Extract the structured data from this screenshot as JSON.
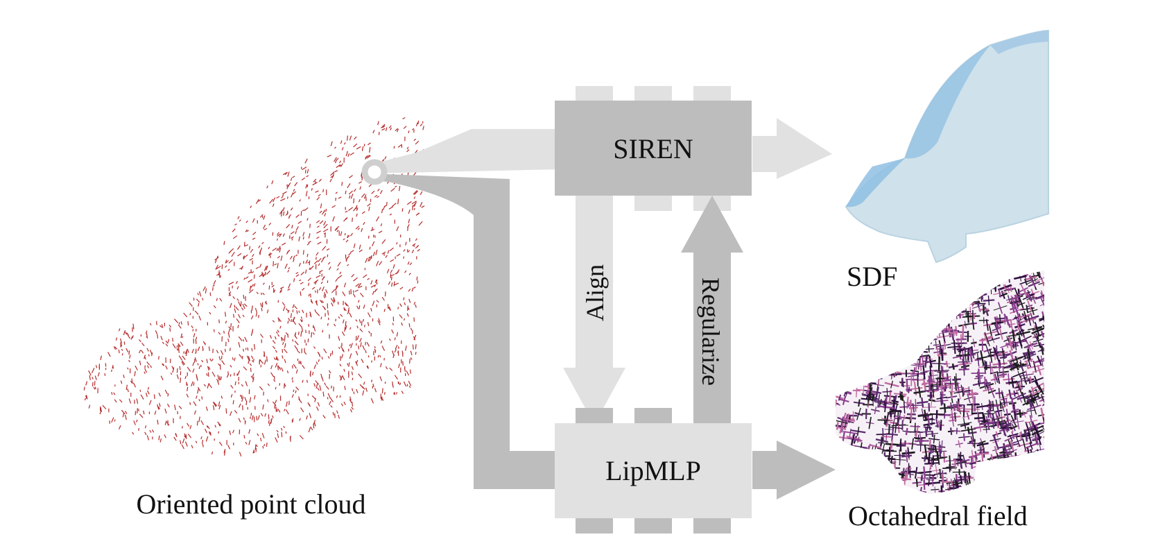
{
  "nodes": {
    "siren": {
      "label": "SIREN"
    },
    "lipmlp": {
      "label": "LipMLP"
    }
  },
  "edges": {
    "align": {
      "label": "Align"
    },
    "regularize": {
      "label": "Regularize"
    }
  },
  "outputs": {
    "sdf": {
      "label": "SDF"
    },
    "octahedral": {
      "label": "Octahedral field"
    }
  },
  "input": {
    "label": "Oriented point cloud"
  },
  "colors": {
    "light_gray": "#e1e1e1",
    "dark_gray": "#bdbdbd",
    "point_cloud": "#b52a2a",
    "sdf_fill": "#cfe1ea",
    "sdf_edge": "#8fbfe3",
    "field_strokes": [
      "#2b0f3a",
      "#5a2a6e",
      "#8b3f8f",
      "#c06aa0",
      "#1d1d1d"
    ]
  }
}
